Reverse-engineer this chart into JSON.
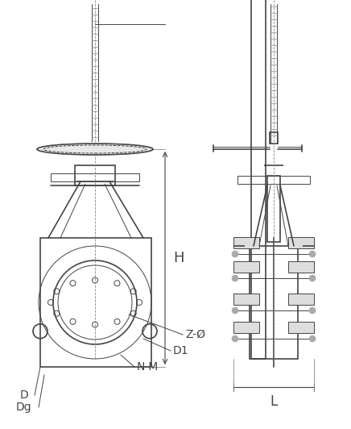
{
  "bg_color": "#ffffff",
  "line_color": "#444444",
  "light_line": "#888888",
  "fig_width": 4.36,
  "fig_height": 5.32,
  "title": "",
  "labels": {
    "H": "H",
    "L": "L",
    "D": "D",
    "Dg": "Dg",
    "D1": "D1",
    "NM": "N-M",
    "ZO": "Z-Ø"
  }
}
